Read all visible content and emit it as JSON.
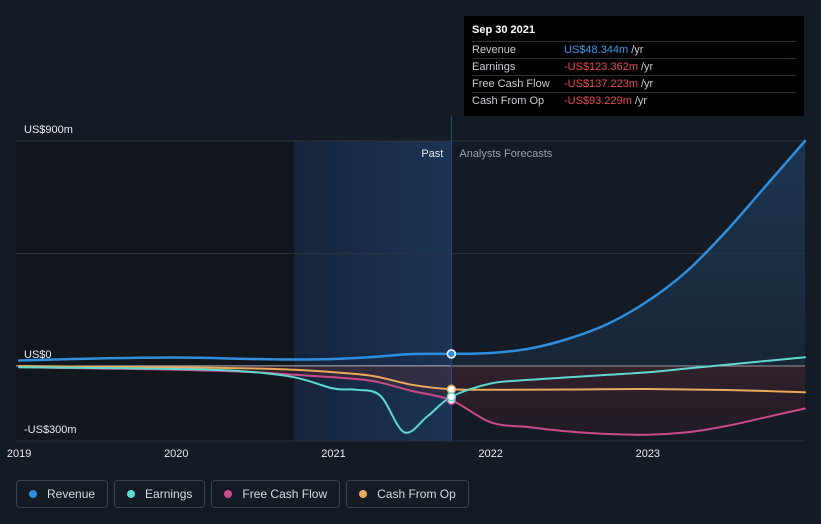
{
  "chart_data": {
    "type": "line",
    "y_axis_labels": [
      "US$900m",
      "US$0",
      "-US$300m"
    ],
    "ylim": [
      -300,
      900
    ],
    "x_ticks": [
      "2019",
      "2020",
      "2021",
      "2022",
      "2023"
    ],
    "region_labels": {
      "past": "Past",
      "forecast": "Analysts Forecasts"
    },
    "grid": true,
    "series": [
      {
        "name": "Revenue",
        "color": "#2f8fde",
        "points": [
          [
            2019.0,
            22
          ],
          [
            2019.5,
            30
          ],
          [
            2020.0,
            34
          ],
          [
            2020.5,
            28
          ],
          [
            2020.75,
            26
          ],
          [
            2021.0,
            28
          ],
          [
            2021.25,
            36
          ],
          [
            2021.5,
            48
          ],
          [
            2021.75,
            48.344
          ],
          [
            2022.0,
            52
          ],
          [
            2022.25,
            70
          ],
          [
            2022.5,
            110
          ],
          [
            2022.75,
            170
          ],
          [
            2023.0,
            260
          ],
          [
            2023.25,
            380
          ],
          [
            2023.5,
            540
          ],
          [
            2023.75,
            720
          ],
          [
            2024.0,
            900
          ]
        ]
      },
      {
        "name": "Earnings",
        "color": "#5fd8cf",
        "points": [
          [
            2019.0,
            -5
          ],
          [
            2019.5,
            -8
          ],
          [
            2020.0,
            -12
          ],
          [
            2020.4,
            -20
          ],
          [
            2020.75,
            -45
          ],
          [
            2021.0,
            -90
          ],
          [
            2021.15,
            -95
          ],
          [
            2021.3,
            -120
          ],
          [
            2021.45,
            -265
          ],
          [
            2021.6,
            -200
          ],
          [
            2021.75,
            -123.362
          ],
          [
            2022.0,
            -70
          ],
          [
            2022.25,
            -55
          ],
          [
            2022.5,
            -45
          ],
          [
            2022.75,
            -35
          ],
          [
            2023.0,
            -25
          ],
          [
            2023.25,
            -10
          ],
          [
            2023.5,
            5
          ],
          [
            2023.75,
            20
          ],
          [
            2024.0,
            35
          ]
        ]
      },
      {
        "name": "Free Cash Flow",
        "color": "#c94b8a",
        "points": [
          [
            2019.0,
            -5
          ],
          [
            2019.5,
            -10
          ],
          [
            2020.0,
            -15
          ],
          [
            2020.5,
            -25
          ],
          [
            2020.75,
            -35
          ],
          [
            2021.0,
            -45
          ],
          [
            2021.25,
            -60
          ],
          [
            2021.5,
            -100
          ],
          [
            2021.75,
            -137.223
          ],
          [
            2022.0,
            -225
          ],
          [
            2022.25,
            -245
          ],
          [
            2022.5,
            -262
          ],
          [
            2022.75,
            -272
          ],
          [
            2023.0,
            -275
          ],
          [
            2023.25,
            -265
          ],
          [
            2023.5,
            -240
          ],
          [
            2023.75,
            -205
          ],
          [
            2024.0,
            -170
          ]
        ]
      },
      {
        "name": "Cash From Op",
        "color": "#e8a95a",
        "points": [
          [
            2019.0,
            0
          ],
          [
            2019.5,
            -3
          ],
          [
            2020.0,
            -5
          ],
          [
            2020.5,
            -10
          ],
          [
            2020.75,
            -15
          ],
          [
            2021.0,
            -25
          ],
          [
            2021.25,
            -40
          ],
          [
            2021.5,
            -75
          ],
          [
            2021.75,
            -93.229
          ],
          [
            2022.0,
            -95
          ],
          [
            2022.5,
            -94
          ],
          [
            2023.0,
            -92
          ],
          [
            2023.5,
            -96
          ],
          [
            2024.0,
            -105
          ]
        ]
      }
    ]
  },
  "tooltip": {
    "date": "Sep 30 2021",
    "rows": [
      {
        "label": "Revenue",
        "value": "US$48.344m",
        "unit": "/yr",
        "color": "#3d9be9"
      },
      {
        "label": "Earnings",
        "value": "-US$123.362m",
        "unit": "/yr",
        "color": "#e84d4d"
      },
      {
        "label": "Free Cash Flow",
        "value": "-US$137.223m",
        "unit": "/yr",
        "color": "#e84d4d"
      },
      {
        "label": "Cash From Op",
        "value": "-US$93.229m",
        "unit": "/yr",
        "color": "#e84d4d"
      }
    ]
  },
  "legend": [
    {
      "label": "Revenue",
      "color": "#2f8fde"
    },
    {
      "label": "Earnings",
      "color": "#5fd8cf"
    },
    {
      "label": "Free Cash Flow",
      "color": "#c94b8a"
    },
    {
      "label": "Cash From Op",
      "color": "#e8a95a"
    }
  ]
}
